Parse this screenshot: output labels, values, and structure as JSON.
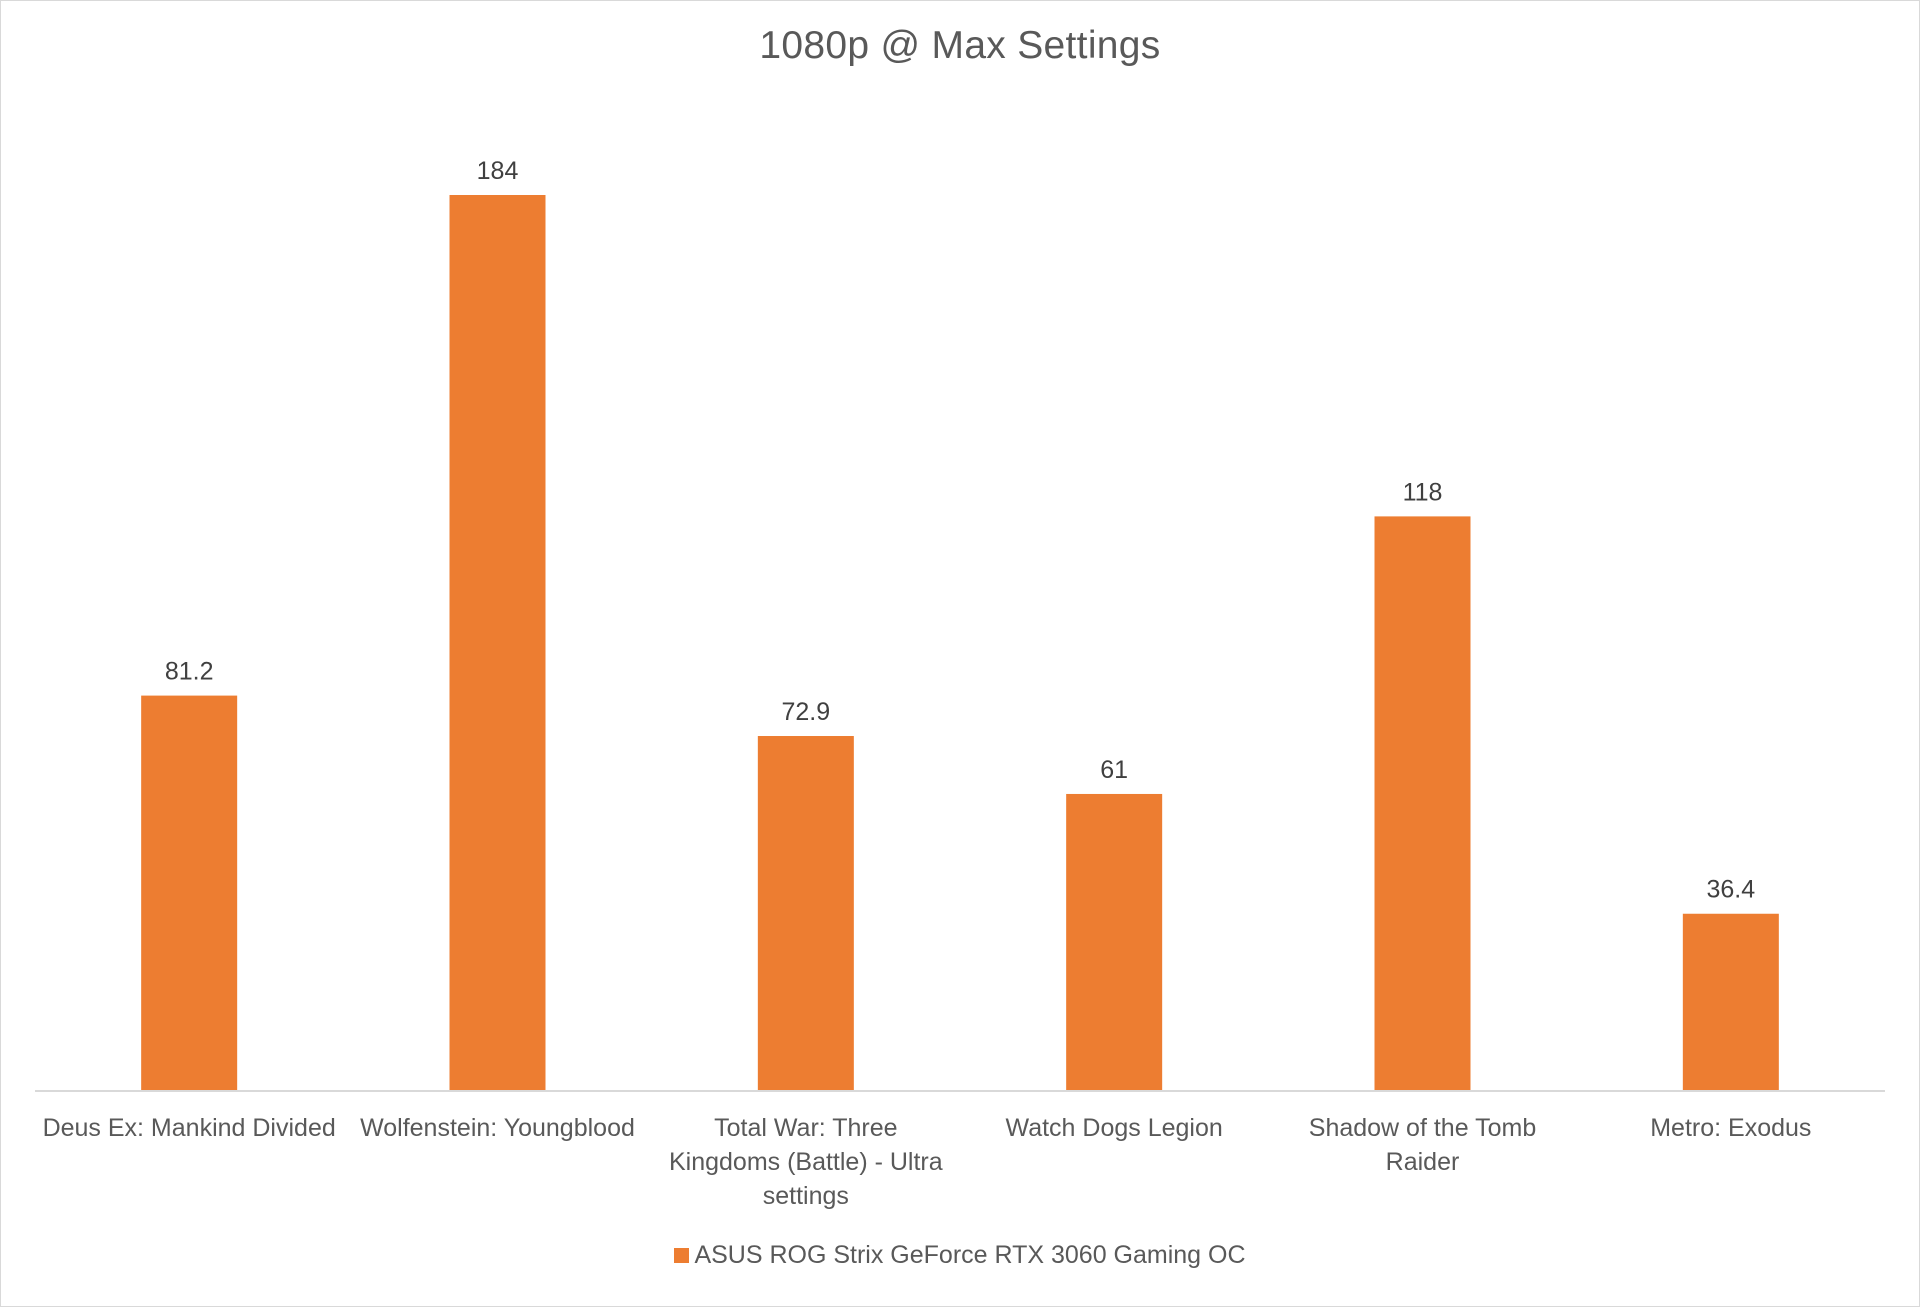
{
  "chart_data": {
    "type": "bar",
    "title": "1080p @ Max Settings",
    "xlabel": "",
    "ylabel": "",
    "categories": [
      [
        "Deus Ex: Mankind Divided"
      ],
      [
        "Wolfenstein: Youngblood"
      ],
      [
        "Total War: Three",
        "Kingdoms (Battle) - Ultra",
        "settings"
      ],
      [
        "Watch Dogs Legion"
      ],
      [
        "Shadow of the Tomb",
        "Raider"
      ],
      [
        "Metro: Exodus"
      ]
    ],
    "series": [
      {
        "name": "ASUS ROG Strix GeForce RTX 3060 Gaming OC",
        "values": [
          81.2,
          184,
          72.9,
          61,
          118,
          36.4
        ],
        "value_labels": [
          "81.2",
          "184",
          "72.9",
          "61",
          "118",
          "36.4"
        ],
        "color": "#ed7d31"
      }
    ],
    "ylim": [
      0,
      184
    ],
    "grid": false,
    "legend": "bottom"
  }
}
